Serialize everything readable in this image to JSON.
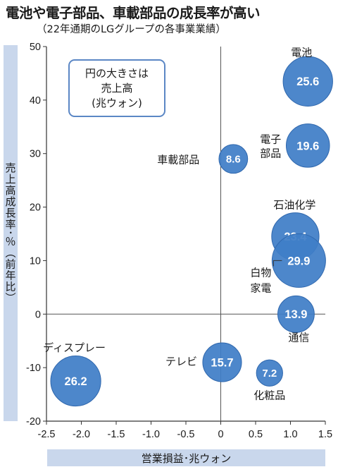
{
  "header": {
    "title": "電池や電子部品、車載部品の成長率が高い",
    "subtitle": "（22年通期のLGグループの各事業業績）"
  },
  "note": {
    "lines": [
      "円の大きさは",
      "売上高",
      "(兆ウォン)"
    ]
  },
  "colors": {
    "bubble": "#3f7ec7",
    "bubble_stroke": "#2f67ad",
    "axis_band": "#c9d7ec",
    "legend_border": "#5b87c5"
  },
  "chart_data": {
    "type": "scatter",
    "title": "電池や電子部品、車載部品の成長率が高い",
    "subtitle": "（22年通期のLGグループの各事業業績）",
    "xlabel": "営業損益･兆ウォン",
    "ylabel": "売上高成長率･％（前年比）",
    "xlim": [
      -2.5,
      1.5
    ],
    "ylim": [
      -20,
      50
    ],
    "xticks": [
      "-2.5",
      "-2.0",
      "-1.5",
      "-1.0",
      "-0.5",
      "0",
      "0.5",
      "1.0",
      "1.5"
    ],
    "yticks": [
      "50",
      "40",
      "30",
      "20",
      "10",
      "0",
      "-10",
      "-20"
    ],
    "size_legend": "円の大きさは売上高（兆ウォン）",
    "points": [
      {
        "name": "電池",
        "x": 1.25,
        "y": 43.5,
        "size": 25.6,
        "label": "25.6"
      },
      {
        "name": "電子部品",
        "x": 1.25,
        "y": 31.5,
        "size": 19.6,
        "label": "19.6"
      },
      {
        "name": "車載部品",
        "x": 0.18,
        "y": 29.0,
        "size": 8.6,
        "label": "8.6"
      },
      {
        "name": "石油化学",
        "x": 1.07,
        "y": 14.5,
        "size": 23.4,
        "label": "23.4"
      },
      {
        "name": "白物家電",
        "x": 1.12,
        "y": 10.0,
        "size": 29.9,
        "label": "29.9"
      },
      {
        "name": "通信",
        "x": 1.08,
        "y": 0.0,
        "size": 13.9,
        "label": "13.9"
      },
      {
        "name": "ディスプレー",
        "x": -2.08,
        "y": -12.5,
        "size": 26.2,
        "label": "26.2"
      },
      {
        "name": "テレビ",
        "x": 0.02,
        "y": -9.0,
        "size": 15.7,
        "label": "15.7"
      },
      {
        "name": "化粧品",
        "x": 0.7,
        "y": -11.0,
        "size": 7.2,
        "label": "7.2"
      }
    ]
  }
}
